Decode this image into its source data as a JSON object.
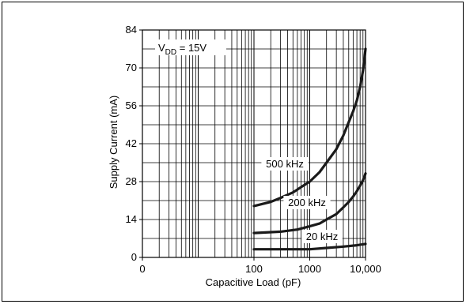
{
  "chart_data": {
    "type": "line",
    "xlabel": "Capacitive Load (pF)",
    "ylabel": "Supply Current (mA)",
    "x_scale": "log",
    "x_ticks": [
      "0",
      "100",
      "1000",
      "10,000"
    ],
    "y_ticks": [
      0,
      14,
      28,
      42,
      56,
      70,
      84
    ],
    "ylim": [
      0,
      84
    ],
    "xlim": [
      1,
      10000
    ],
    "grid": true,
    "annotation_prefix": "V",
    "annotation_sub": "DD",
    "annotation_suffix": " = 15V",
    "series": [
      {
        "name": "500 kHz",
        "x": [
          100,
          200,
          300,
          500,
          700,
          1000,
          1500,
          2000,
          3000,
          4000,
          5000,
          6000,
          7000,
          8000,
          9000,
          10000
        ],
        "y": [
          19,
          20.5,
          22,
          24,
          26,
          28,
          31.5,
          35,
          40,
          45,
          50,
          54,
          58,
          63,
          69,
          77
        ]
      },
      {
        "name": "200 kHz",
        "x": [
          100,
          300,
          600,
          1000,
          1500,
          2000,
          3000,
          4000,
          5000,
          6000,
          7000,
          8000,
          9000,
          10000
        ],
        "y": [
          9,
          9.5,
          10.3,
          11.5,
          12.5,
          14,
          16,
          18.5,
          20.5,
          22.5,
          24.5,
          26.5,
          28.5,
          31
        ]
      },
      {
        "name": "20 kHz",
        "x": [
          100,
          500,
          1000,
          2000,
          4000,
          7000,
          10000
        ],
        "y": [
          3,
          3,
          3,
          3.5,
          4,
          4.5,
          5
        ]
      }
    ]
  }
}
